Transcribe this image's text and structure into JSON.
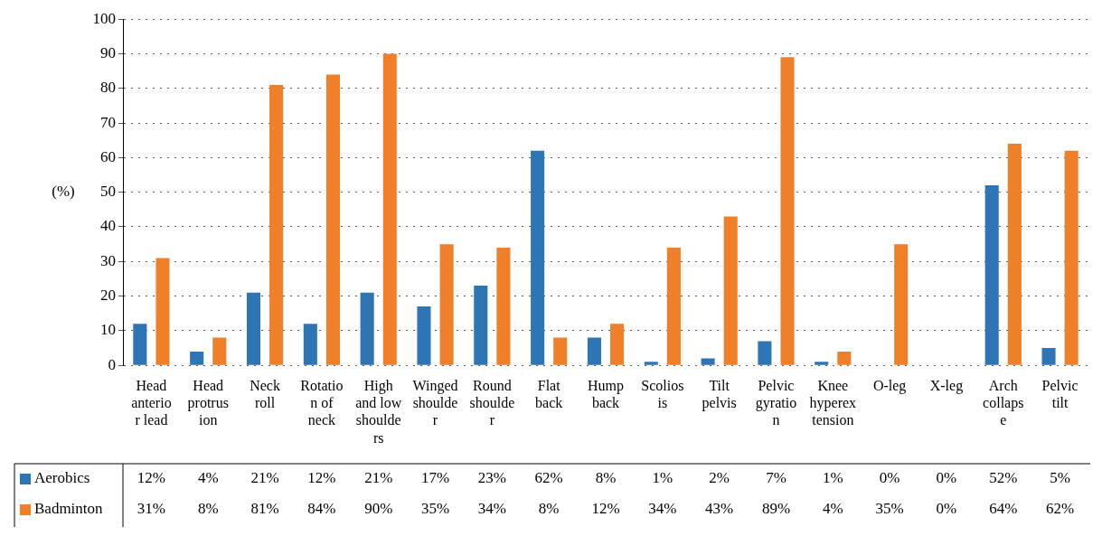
{
  "chart_data": {
    "type": "bar",
    "ylabel": "(%)",
    "categories": [
      "Head anterior lead",
      "Head protrusion",
      "Neck roll",
      "Rotation of neck",
      "High and low shoulders",
      "Winged shoulder",
      "Round shoulder",
      "Flat back",
      "Hump back",
      "Scoliosis",
      "Tilt pelvis",
      "Pelvic gyration",
      "Knee hyperextension",
      "O-leg",
      "X-leg",
      "Arch collapse",
      "Pelvic tilt"
    ],
    "series": [
      {
        "name": "Aerobics",
        "color": "#2e75b6",
        "values": [
          12,
          4,
          21,
          12,
          21,
          17,
          23,
          62,
          8,
          1,
          2,
          7,
          1,
          0,
          0,
          52,
          5
        ],
        "value_labels": [
          "12%",
          "4%",
          "21%",
          "12%",
          "21%",
          "17%",
          "23%",
          "62%",
          "8%",
          "1%",
          "2%",
          "7%",
          "1%",
          "0%",
          "0%",
          "52%",
          "5%"
        ]
      },
      {
        "name": "Badminton",
        "color": "#f07f2a",
        "values": [
          31,
          8,
          81,
          84,
          90,
          35,
          34,
          8,
          12,
          34,
          43,
          89,
          4,
          35,
          0,
          64,
          62
        ],
        "value_labels": [
          "31%",
          "8%",
          "81%",
          "84%",
          "90%",
          "35%",
          "34%",
          "8%",
          "12%",
          "34%",
          "43%",
          "89%",
          "4%",
          "35%",
          "0%",
          "64%",
          "62%"
        ]
      }
    ],
    "ylim": [
      0,
      100
    ],
    "yticks": [
      0,
      10,
      20,
      30,
      40,
      50,
      60,
      70,
      80,
      90,
      100
    ],
    "grid": "y",
    "legend": "bottom"
  }
}
